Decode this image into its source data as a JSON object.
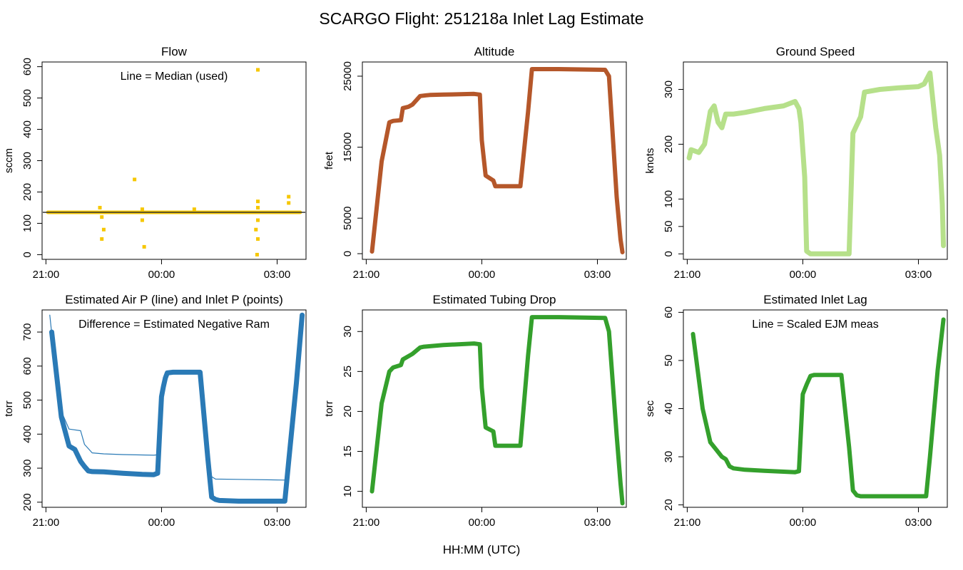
{
  "page_title": "SCARGO Flight: 251218a  Inlet Lag Estimate",
  "x_axis_label": "HH:MM (UTC)",
  "x_ticks": [
    "21:00",
    "00:00",
    "03:00"
  ],
  "colors": {
    "flow": "#f6c700",
    "altitude": "#b5572a",
    "ground_speed": "#b6e08a",
    "pressure": "#2a7ab6",
    "tubing": "#34a02c",
    "lag_points": "#34a02c",
    "lag_line": "#8a3fc8",
    "median_line": "#333333"
  },
  "chart_data": [
    {
      "type": "scatter",
      "title": "Flow",
      "ylabel": "sccm",
      "annotation": "Line = Median (used)",
      "ylim": [
        -15,
        615
      ],
      "yticks": [
        "0",
        "100",
        "200",
        "300",
        "400",
        "500",
        "600"
      ],
      "xlim_hours": [
        20.9,
        27.75
      ],
      "median": 135,
      "series": [
        {
          "name": "Flow",
          "x": [
            21.05,
            22.5,
            23.6,
            24.5,
            25.0,
            26.0,
            26.5,
            27.3,
            27.6
          ],
          "y": [
            135,
            135,
            135,
            135,
            135,
            135,
            135,
            135,
            135
          ]
        }
      ],
      "outliers": [
        {
          "x": 22.4,
          "y": 150
        },
        {
          "x": 22.45,
          "y": 120
        },
        {
          "x": 22.5,
          "y": 80
        },
        {
          "x": 22.45,
          "y": 50
        },
        {
          "x": 23.3,
          "y": 240
        },
        {
          "x": 23.5,
          "y": 145
        },
        {
          "x": 23.5,
          "y": 110
        },
        {
          "x": 23.55,
          "y": 25
        },
        {
          "x": 24.85,
          "y": 145
        },
        {
          "x": 26.5,
          "y": 590
        },
        {
          "x": 26.5,
          "y": 170
        },
        {
          "x": 26.5,
          "y": 150
        },
        {
          "x": 26.5,
          "y": 110
        },
        {
          "x": 26.45,
          "y": 80
        },
        {
          "x": 26.5,
          "y": 50
        },
        {
          "x": 26.48,
          "y": 0
        },
        {
          "x": 27.3,
          "y": 185
        },
        {
          "x": 27.3,
          "y": 165
        }
      ]
    },
    {
      "type": "line",
      "title": "Altitude",
      "ylabel": "feet",
      "ylim": [
        -800,
        27000
      ],
      "yticks": [
        "0",
        "5000",
        "15000",
        "25000"
      ],
      "ytick_values": [
        0,
        5000,
        15000,
        25000
      ],
      "xlim_hours": [
        20.9,
        27.75
      ],
      "series": [
        {
          "name": "Altitude",
          "x": [
            21.15,
            21.4,
            21.6,
            21.7,
            21.9,
            21.95,
            22.1,
            22.2,
            22.4,
            22.55,
            22.65,
            23.0,
            23.8,
            23.95,
            24.0,
            24.1,
            24.3,
            24.35,
            25.0,
            25.2,
            25.3,
            26.0,
            27.2,
            27.3,
            27.5,
            27.6,
            27.65
          ],
          "y": [
            300,
            13000,
            18500,
            18700,
            18800,
            20500,
            20700,
            21000,
            22200,
            22300,
            22350,
            22400,
            22500,
            22400,
            16000,
            11000,
            10300,
            9500,
            9500,
            20000,
            26000,
            26000,
            25900,
            25000,
            8000,
            2000,
            200
          ]
        }
      ]
    },
    {
      "type": "line",
      "title": "Ground Speed",
      "ylabel": "knots",
      "ylim": [
        -10,
        350
      ],
      "yticks": [
        "0",
        "50",
        "100",
        "200",
        "300"
      ],
      "ytick_values": [
        0,
        50,
        100,
        200,
        300
      ],
      "xlim_hours": [
        20.9,
        27.75
      ],
      "series": [
        {
          "name": "Ground Speed",
          "x": [
            21.05,
            21.1,
            21.3,
            21.45,
            21.6,
            21.7,
            21.8,
            21.9,
            22.0,
            22.2,
            22.5,
            23.0,
            23.5,
            23.8,
            23.9,
            23.95,
            24.05,
            24.1,
            24.2,
            25.0,
            25.2,
            25.3,
            25.5,
            25.6,
            26.0,
            26.5,
            27.0,
            27.15,
            27.3,
            27.45,
            27.55,
            27.62,
            27.65
          ],
          "y": [
            175,
            190,
            185,
            200,
            260,
            270,
            240,
            230,
            255,
            255,
            258,
            265,
            270,
            278,
            265,
            240,
            140,
            5,
            0,
            0,
            0,
            220,
            250,
            295,
            300,
            303,
            305,
            310,
            330,
            230,
            180,
            90,
            15
          ]
        }
      ]
    },
    {
      "type": "line",
      "title": "Estimated Air P (line) and Inlet P (points)",
      "ylabel": "torr",
      "annotation": "Difference = Estimated Negative Ram",
      "ylim": [
        185,
        765
      ],
      "yticks": [
        "200",
        "300",
        "400",
        "500",
        "600",
        "700"
      ],
      "ytick_values": [
        200,
        300,
        400,
        500,
        600,
        700
      ],
      "xlim_hours": [
        20.9,
        27.75
      ],
      "series": [
        {
          "name": "Inlet P (points)",
          "x": [
            21.15,
            21.4,
            21.6,
            21.75,
            21.9,
            22.0,
            22.1,
            22.2,
            22.5,
            23.0,
            23.5,
            23.8,
            23.9,
            23.95,
            24.0,
            24.05,
            24.1,
            24.15,
            24.3,
            25.0,
            25.2,
            25.3,
            25.4,
            25.5,
            26.0,
            27.2,
            27.3,
            27.5,
            27.65
          ],
          "y": [
            700,
            450,
            365,
            355,
            320,
            305,
            292,
            290,
            289,
            285,
            282,
            281,
            285,
            400,
            510,
            540,
            565,
            580,
            582,
            582,
            330,
            215,
            208,
            205,
            203,
            203,
            320,
            550,
            750
          ]
        },
        {
          "name": "Estimated Air P (line)",
          "x": [
            21.1,
            21.35,
            21.6,
            21.9,
            22.0,
            22.2,
            22.5,
            23.0,
            23.8,
            23.95,
            24.0,
            24.05,
            24.1,
            24.15,
            24.3,
            25.0,
            25.15,
            25.3,
            25.4,
            26.0,
            27.2,
            27.3,
            27.5,
            27.65
          ],
          "y": [
            750,
            480,
            415,
            410,
            370,
            345,
            342,
            340,
            338,
            340,
            440,
            520,
            560,
            580,
            582,
            582,
            400,
            275,
            268,
            267,
            265,
            320,
            540,
            755
          ]
        }
      ]
    },
    {
      "type": "line",
      "title": "Estimated Tubing Drop",
      "ylabel": "torr",
      "ylim": [
        8,
        32.7
      ],
      "yticks": [
        "10",
        "15",
        "20",
        "25",
        "30"
      ],
      "ytick_values": [
        10,
        15,
        20,
        25,
        30
      ],
      "xlim_hours": [
        20.9,
        27.75
      ],
      "series": [
        {
          "name": "Tubing Drop",
          "x": [
            21.15,
            21.4,
            21.6,
            21.7,
            21.9,
            21.95,
            22.2,
            22.4,
            22.5,
            23.0,
            23.8,
            23.95,
            24.0,
            24.1,
            24.3,
            24.35,
            25.0,
            25.2,
            25.3,
            26.0,
            27.2,
            27.3,
            27.5,
            27.6,
            27.65
          ],
          "y": [
            10,
            21,
            25,
            25.5,
            25.8,
            26.5,
            27.2,
            28,
            28.1,
            28.3,
            28.5,
            28.4,
            23,
            18,
            17.5,
            15.7,
            15.7,
            27,
            31.8,
            31.8,
            31.7,
            30,
            17,
            11,
            8.5
          ]
        }
      ]
    },
    {
      "type": "line",
      "title": "Estimated Inlet Lag",
      "ylabel": "sec",
      "annotation": "Line = Scaled EJM meas",
      "ylim": [
        19.5,
        60.5
      ],
      "yticks": [
        "20",
        "30",
        "40",
        "50",
        "60"
      ],
      "ytick_values": [
        20,
        30,
        40,
        50,
        60
      ],
      "xlim_hours": [
        20.9,
        27.75
      ],
      "series": [
        {
          "name": "Inlet Lag",
          "x": [
            21.15,
            21.4,
            21.6,
            21.75,
            21.9,
            22.0,
            22.1,
            22.2,
            22.5,
            23.0,
            23.5,
            23.8,
            23.9,
            23.95,
            24.0,
            24.1,
            24.2,
            24.3,
            25.0,
            25.2,
            25.3,
            25.4,
            25.5,
            26.0,
            27.2,
            27.3,
            27.5,
            27.65
          ],
          "y": [
            55.5,
            40,
            33,
            31.5,
            30,
            29.5,
            28,
            27.6,
            27.3,
            27.1,
            26.9,
            26.8,
            27,
            35,
            43,
            45,
            46.8,
            47,
            47,
            32,
            23,
            22,
            21.8,
            21.8,
            21.8,
            30,
            48,
            58.5
          ]
        }
      ]
    }
  ]
}
